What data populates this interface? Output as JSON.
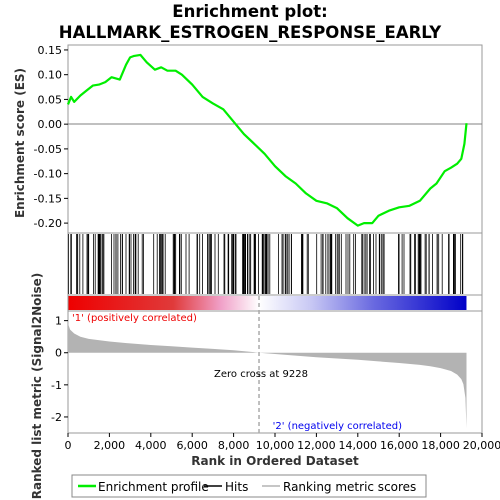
{
  "title_line1": "Enrichment plot:",
  "title_line2": "HALLMARK_ESTROGEN_RESPONSE_EARLY",
  "y_label_top": "Enrichment score (ES)",
  "y_label_bottom": "Ranked list metric (Signal2Noise)",
  "x_label": "Rank in Ordered Dataset",
  "zero_cross_label": "Zero cross at 9228",
  "pos_label": "'1' (positively correlated)",
  "neg_label": "'2' (negatively correlated)",
  "legend": {
    "enrichment": "Enrichment profile",
    "hits": "Hits",
    "ranking": "Ranking metric scores"
  },
  "colors": {
    "es_line": "#00ee00",
    "pos_label": "#ee0000",
    "neg_label": "#0000ee",
    "metric_fill": "#b3b3b3",
    "zero_line": "#808080"
  },
  "chart_data": [
    {
      "type": "line",
      "panel": "enrichment",
      "x_ticks": [
        "0",
        "2,000",
        "4,000",
        "6,000",
        "8,000",
        "10,000",
        "12,000",
        "14,000",
        "16,000",
        "18,000",
        "20,000"
      ],
      "y_ticks": [
        "0.15",
        "0.10",
        "0.05",
        "0.00",
        "-0.05",
        "-0.10",
        "-0.15",
        "-0.20"
      ],
      "ylim": [
        -0.22,
        0.16
      ],
      "xlim": [
        0,
        20000
      ],
      "series": [
        {
          "x": [
            0,
            150,
            300,
            600,
            900,
            1200,
            1500,
            1800,
            2100,
            2500,
            2800,
            3000,
            3200,
            3500,
            3800,
            4200,
            4500,
            4800,
            5200,
            5500,
            6000,
            6500,
            7000,
            7500,
            8000,
            8500,
            9000,
            9500,
            10000,
            10500,
            11000,
            11500,
            12000,
            12500,
            13000,
            13500,
            14000,
            14300,
            14700,
            15000,
            15500,
            16000,
            16500,
            17000,
            17500,
            17800,
            18200,
            18500,
            18800,
            19000,
            19150,
            19250
          ],
          "y": [
            0.04,
            0.055,
            0.045,
            0.058,
            0.068,
            0.078,
            0.08,
            0.085,
            0.095,
            0.09,
            0.12,
            0.135,
            0.138,
            0.14,
            0.125,
            0.11,
            0.115,
            0.108,
            0.108,
            0.1,
            0.08,
            0.055,
            0.042,
            0.03,
            0.005,
            -0.02,
            -0.04,
            -0.06,
            -0.085,
            -0.105,
            -0.12,
            -0.14,
            -0.155,
            -0.16,
            -0.17,
            -0.19,
            -0.205,
            -0.2,
            -0.2,
            -0.185,
            -0.175,
            -0.168,
            -0.165,
            -0.155,
            -0.13,
            -0.12,
            -0.095,
            -0.088,
            -0.08,
            -0.07,
            -0.04,
            0.002
          ]
        }
      ]
    },
    {
      "type": "area",
      "panel": "ranked_metric",
      "zero_cross": 9228,
      "y_ticks": [
        "1",
        "0",
        "-1",
        "-2"
      ],
      "ylim": [
        -2.5,
        1.3
      ],
      "xlim": [
        0,
        20000
      ],
      "series": [
        {
          "x": [
            0,
            30,
            100,
            300,
            600,
            1000,
            2000,
            3000,
            4000,
            5000,
            6000,
            7000,
            8000,
            9228,
            10000,
            11000,
            12000,
            13000,
            14000,
            15000,
            16000,
            17000,
            17500,
            18000,
            18500,
            18800,
            19000,
            19100,
            19200,
            19250
          ],
          "y": [
            1.05,
            0.85,
            0.72,
            0.6,
            0.5,
            0.43,
            0.35,
            0.29,
            0.24,
            0.2,
            0.16,
            0.12,
            0.08,
            0.0,
            -0.04,
            -0.09,
            -0.14,
            -0.18,
            -0.22,
            -0.27,
            -0.32,
            -0.38,
            -0.42,
            -0.48,
            -0.57,
            -0.68,
            -0.82,
            -0.98,
            -1.4,
            -2.35
          ]
        }
      ]
    }
  ]
}
